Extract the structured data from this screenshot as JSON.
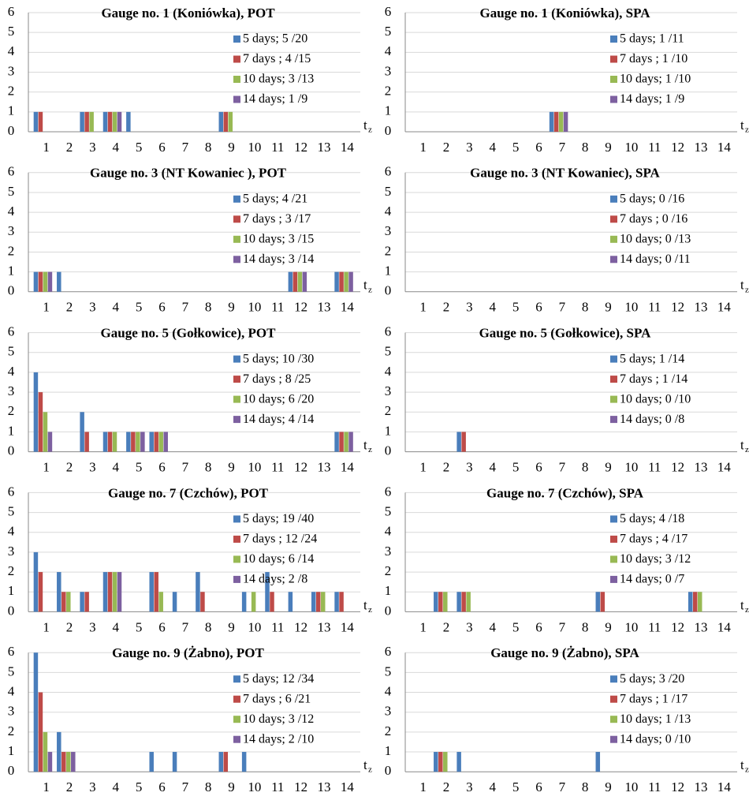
{
  "chart_data": [
    {
      "type": "bar",
      "title": "Gauge no. 1 (Koniówka), POT",
      "categories": [
        1,
        2,
        3,
        4,
        5,
        6,
        7,
        8,
        9,
        10,
        11,
        12,
        13,
        14
      ],
      "ylim": [
        0,
        6
      ],
      "yticks": [
        0,
        1,
        2,
        3,
        4,
        5,
        6
      ],
      "grid": true,
      "legend": "upper-right",
      "xlabel": "t",
      "xlabel_sub": "z",
      "series": [
        {
          "name": "5 days; 5 /20",
          "color": "#4a7ebb",
          "values": [
            1,
            0,
            1,
            1,
            1,
            0,
            0,
            0,
            1,
            0,
            0,
            0,
            0,
            0
          ]
        },
        {
          "name": "7 days ; 4 /15",
          "color": "#be4b48",
          "values": [
            1,
            0,
            1,
            1,
            0,
            0,
            0,
            0,
            1,
            0,
            0,
            0,
            0,
            0
          ]
        },
        {
          "name": "10 days; 3 /13",
          "color": "#98b954",
          "values": [
            0,
            0,
            1,
            1,
            0,
            0,
            0,
            0,
            1,
            0,
            0,
            0,
            0,
            0
          ]
        },
        {
          "name": "14 days; 1 /9",
          "color": "#7d60a0",
          "values": [
            0,
            0,
            0,
            1,
            0,
            0,
            0,
            0,
            0,
            0,
            0,
            0,
            0,
            0
          ]
        }
      ]
    },
    {
      "type": "bar",
      "title": "Gauge no. 1 (Koniówka), SPA",
      "categories": [
        1,
        2,
        3,
        4,
        5,
        6,
        7,
        8,
        9,
        10,
        11,
        12,
        13,
        14
      ],
      "ylim": [
        0,
        6
      ],
      "yticks": [
        0,
        1,
        2,
        3,
        4,
        5,
        6
      ],
      "grid": true,
      "legend": "upper-right",
      "xlabel": "t",
      "xlabel_sub": "z",
      "series": [
        {
          "name": "5 days; 1 /11",
          "color": "#4a7ebb",
          "values": [
            0,
            0,
            0,
            0,
            0,
            0,
            1,
            0,
            0,
            0,
            0,
            0,
            0,
            0
          ]
        },
        {
          "name": "7 days ; 1 /10",
          "color": "#be4b48",
          "values": [
            0,
            0,
            0,
            0,
            0,
            0,
            1,
            0,
            0,
            0,
            0,
            0,
            0,
            0
          ]
        },
        {
          "name": "10 days; 1 /10",
          "color": "#98b954",
          "values": [
            0,
            0,
            0,
            0,
            0,
            0,
            1,
            0,
            0,
            0,
            0,
            0,
            0,
            0
          ]
        },
        {
          "name": "14 days; 1 /9",
          "color": "#7d60a0",
          "values": [
            0,
            0,
            0,
            0,
            0,
            0,
            1,
            0,
            0,
            0,
            0,
            0,
            0,
            0
          ]
        }
      ]
    },
    {
      "type": "bar",
      "title": "Gauge no. 3 (NT Kowaniec ), POT",
      "categories": [
        1,
        2,
        3,
        4,
        5,
        6,
        7,
        8,
        9,
        10,
        11,
        12,
        13,
        14
      ],
      "ylim": [
        0,
        6
      ],
      "yticks": [
        0,
        1,
        2,
        3,
        4,
        5,
        6
      ],
      "grid": true,
      "legend": "upper-right",
      "xlabel": "t",
      "xlabel_sub": "z",
      "series": [
        {
          "name": "5 days; 4 /21",
          "color": "#4a7ebb",
          "values": [
            1,
            1,
            0,
            0,
            0,
            0,
            0,
            0,
            0,
            0,
            0,
            1,
            0,
            1
          ]
        },
        {
          "name": "7 days ; 3 /17",
          "color": "#be4b48",
          "values": [
            1,
            0,
            0,
            0,
            0,
            0,
            0,
            0,
            0,
            0,
            0,
            1,
            0,
            1
          ]
        },
        {
          "name": "10 days; 3 /15",
          "color": "#98b954",
          "values": [
            1,
            0,
            0,
            0,
            0,
            0,
            0,
            0,
            0,
            0,
            0,
            1,
            0,
            1
          ]
        },
        {
          "name": "14 days; 3 /14",
          "color": "#7d60a0",
          "values": [
            1,
            0,
            0,
            0,
            0,
            0,
            0,
            0,
            0,
            0,
            0,
            1,
            0,
            1
          ]
        }
      ]
    },
    {
      "type": "bar",
      "title": "Gauge no. 3 (NT Kowaniec), SPA",
      "categories": [
        1,
        2,
        3,
        4,
        5,
        6,
        7,
        8,
        9,
        10,
        11,
        12,
        13,
        14
      ],
      "ylim": [
        0,
        6
      ],
      "yticks": [
        0,
        1,
        2,
        3,
        4,
        5,
        6
      ],
      "grid": true,
      "legend": "upper-right",
      "xlabel": "t",
      "xlabel_sub": "z",
      "series": [
        {
          "name": "5 days; 0 /16",
          "color": "#4a7ebb",
          "values": [
            0,
            0,
            0,
            0,
            0,
            0,
            0,
            0,
            0,
            0,
            0,
            0,
            0,
            0
          ]
        },
        {
          "name": "7 days ; 0 /16",
          "color": "#be4b48",
          "values": [
            0,
            0,
            0,
            0,
            0,
            0,
            0,
            0,
            0,
            0,
            0,
            0,
            0,
            0
          ]
        },
        {
          "name": "10 days; 0 /13",
          "color": "#98b954",
          "values": [
            0,
            0,
            0,
            0,
            0,
            0,
            0,
            0,
            0,
            0,
            0,
            0,
            0,
            0
          ]
        },
        {
          "name": "14 days; 0 /11",
          "color": "#7d60a0",
          "values": [
            0,
            0,
            0,
            0,
            0,
            0,
            0,
            0,
            0,
            0,
            0,
            0,
            0,
            0
          ]
        }
      ]
    },
    {
      "type": "bar",
      "title": "Gauge no. 5 (Gołkowice), POT",
      "categories": [
        1,
        2,
        3,
        4,
        5,
        6,
        7,
        8,
        9,
        10,
        11,
        12,
        13,
        14
      ],
      "ylim": [
        0,
        6
      ],
      "yticks": [
        0,
        1,
        2,
        3,
        4,
        5,
        6
      ],
      "grid": true,
      "legend": "upper-right",
      "xlabel": "t",
      "xlabel_sub": "z",
      "series": [
        {
          "name": "5 days; 10 /30",
          "color": "#4a7ebb",
          "values": [
            4,
            0,
            2,
            1,
            1,
            1,
            0,
            0,
            0,
            0,
            0,
            0,
            0,
            1
          ]
        },
        {
          "name": "7 days ; 8 /25",
          "color": "#be4b48",
          "values": [
            3,
            0,
            1,
            1,
            1,
            1,
            0,
            0,
            0,
            0,
            0,
            0,
            0,
            1
          ]
        },
        {
          "name": "10 days; 6 /20",
          "color": "#98b954",
          "values": [
            2,
            0,
            0,
            1,
            1,
            1,
            0,
            0,
            0,
            0,
            0,
            0,
            0,
            1
          ]
        },
        {
          "name": "14 days; 4 /14",
          "color": "#7d60a0",
          "values": [
            1,
            0,
            0,
            0,
            1,
            1,
            0,
            0,
            0,
            0,
            0,
            0,
            0,
            1
          ]
        }
      ]
    },
    {
      "type": "bar",
      "title": "Gauge no. 5 (Gołkowice), SPA",
      "categories": [
        1,
        2,
        3,
        4,
        5,
        6,
        7,
        8,
        9,
        10,
        11,
        12,
        13,
        14
      ],
      "ylim": [
        0,
        6
      ],
      "yticks": [
        0,
        1,
        2,
        3,
        4,
        5,
        6
      ],
      "grid": true,
      "legend": "upper-right",
      "xlabel": "t",
      "xlabel_sub": "z",
      "series": [
        {
          "name": "5 days; 1 /14",
          "color": "#4a7ebb",
          "values": [
            0,
            0,
            1,
            0,
            0,
            0,
            0,
            0,
            0,
            0,
            0,
            0,
            0,
            0
          ]
        },
        {
          "name": "7 days ; 1 /14",
          "color": "#be4b48",
          "values": [
            0,
            0,
            1,
            0,
            0,
            0,
            0,
            0,
            0,
            0,
            0,
            0,
            0,
            0
          ]
        },
        {
          "name": "10 days; 0 /10",
          "color": "#98b954",
          "values": [
            0,
            0,
            0,
            0,
            0,
            0,
            0,
            0,
            0,
            0,
            0,
            0,
            0,
            0
          ]
        },
        {
          "name": "14 days; 0 /8",
          "color": "#7d60a0",
          "values": [
            0,
            0,
            0,
            0,
            0,
            0,
            0,
            0,
            0,
            0,
            0,
            0,
            0,
            0
          ]
        }
      ]
    },
    {
      "type": "bar",
      "title": "Gauge no. 7 (Czchów), POT",
      "categories": [
        1,
        2,
        3,
        4,
        5,
        6,
        7,
        8,
        9,
        10,
        11,
        12,
        13,
        14
      ],
      "ylim": [
        0,
        6
      ],
      "yticks": [
        0,
        1,
        2,
        3,
        4,
        5,
        6
      ],
      "grid": true,
      "legend": "upper-right",
      "xlabel": "t",
      "xlabel_sub": "z",
      "series": [
        {
          "name": "5 days; 19 /40",
          "color": "#4a7ebb",
          "values": [
            3,
            2,
            1,
            2,
            0,
            2,
            1,
            2,
            0,
            1,
            2,
            1,
            1,
            1
          ]
        },
        {
          "name": "7 days ; 12 /24",
          "color": "#be4b48",
          "values": [
            2,
            1,
            1,
            2,
            0,
            2,
            0,
            1,
            0,
            0,
            1,
            0,
            1,
            1
          ]
        },
        {
          "name": "10 days; 6 /14",
          "color": "#98b954",
          "values": [
            0,
            1,
            0,
            2,
            0,
            1,
            0,
            0,
            0,
            1,
            0,
            0,
            1,
            0
          ]
        },
        {
          "name": "14 days; 2 /8",
          "color": "#7d60a0",
          "values": [
            0,
            0,
            0,
            2,
            0,
            0,
            0,
            0,
            0,
            0,
            0,
            0,
            0,
            0
          ]
        }
      ]
    },
    {
      "type": "bar",
      "title": "Gauge no. 7 (Czchów), SPA",
      "categories": [
        1,
        2,
        3,
        4,
        5,
        6,
        7,
        8,
        9,
        10,
        11,
        12,
        13,
        14
      ],
      "ylim": [
        0,
        6
      ],
      "yticks": [
        0,
        1,
        2,
        3,
        4,
        5,
        6
      ],
      "grid": true,
      "legend": "upper-right",
      "xlabel": "t",
      "xlabel_sub": "z",
      "series": [
        {
          "name": "5 days; 4 /18",
          "color": "#4a7ebb",
          "values": [
            0,
            1,
            1,
            0,
            0,
            0,
            0,
            0,
            1,
            0,
            0,
            0,
            1,
            0
          ]
        },
        {
          "name": "7 days ; 4 /17",
          "color": "#be4b48",
          "values": [
            0,
            1,
            1,
            0,
            0,
            0,
            0,
            0,
            1,
            0,
            0,
            0,
            1,
            0
          ]
        },
        {
          "name": "10 days; 3 /12",
          "color": "#98b954",
          "values": [
            0,
            1,
            1,
            0,
            0,
            0,
            0,
            0,
            0,
            0,
            0,
            0,
            1,
            0
          ]
        },
        {
          "name": "14 days; 0 /7",
          "color": "#7d60a0",
          "values": [
            0,
            0,
            0,
            0,
            0,
            0,
            0,
            0,
            0,
            0,
            0,
            0,
            0,
            0
          ]
        }
      ]
    },
    {
      "type": "bar",
      "title": "Gauge no. 9 (Żabno), POT",
      "categories": [
        1,
        2,
        3,
        4,
        5,
        6,
        7,
        8,
        9,
        10,
        11,
        12,
        13,
        14
      ],
      "ylim": [
        0,
        6
      ],
      "yticks": [
        0,
        1,
        2,
        3,
        4,
        5,
        6
      ],
      "grid": true,
      "legend": "upper-right",
      "xlabel": "t",
      "xlabel_sub": "z",
      "series": [
        {
          "name": "5 days; 12 /34",
          "color": "#4a7ebb",
          "values": [
            6,
            2,
            0,
            0,
            0,
            1,
            1,
            0,
            1,
            1,
            0,
            0,
            0,
            0
          ]
        },
        {
          "name": "7 days ; 6 /21",
          "color": "#be4b48",
          "values": [
            4,
            1,
            0,
            0,
            0,
            0,
            0,
            0,
            1,
            0,
            0,
            0,
            0,
            0
          ]
        },
        {
          "name": "10 days; 3 /12",
          "color": "#98b954",
          "values": [
            2,
            1,
            0,
            0,
            0,
            0,
            0,
            0,
            0,
            0,
            0,
            0,
            0,
            0
          ]
        },
        {
          "name": "14 days; 2 /10",
          "color": "#7d60a0",
          "values": [
            1,
            1,
            0,
            0,
            0,
            0,
            0,
            0,
            0,
            0,
            0,
            0,
            0,
            0
          ]
        }
      ]
    },
    {
      "type": "bar",
      "title": "Gauge no. 9 (Żabno), SPA",
      "categories": [
        1,
        2,
        3,
        4,
        5,
        6,
        7,
        8,
        9,
        10,
        11,
        12,
        13,
        14
      ],
      "ylim": [
        0,
        6
      ],
      "yticks": [
        0,
        1,
        2,
        3,
        4,
        5,
        6
      ],
      "grid": true,
      "legend": "upper-right",
      "xlabel": "t",
      "xlabel_sub": "z",
      "series": [
        {
          "name": "5 days; 3 /20",
          "color": "#4a7ebb",
          "values": [
            0,
            1,
            1,
            0,
            0,
            0,
            0,
            0,
            1,
            0,
            0,
            0,
            0,
            0
          ]
        },
        {
          "name": "7 days ; 1 /17",
          "color": "#be4b48",
          "values": [
            0,
            1,
            0,
            0,
            0,
            0,
            0,
            0,
            0,
            0,
            0,
            0,
            0,
            0
          ]
        },
        {
          "name": "10 days; 1 /13",
          "color": "#98b954",
          "values": [
            0,
            1,
            0,
            0,
            0,
            0,
            0,
            0,
            0,
            0,
            0,
            0,
            0,
            0
          ]
        },
        {
          "name": "14 days; 0 /10",
          "color": "#7d60a0",
          "values": [
            0,
            0,
            0,
            0,
            0,
            0,
            0,
            0,
            0,
            0,
            0,
            0,
            0,
            0
          ]
        }
      ]
    }
  ]
}
